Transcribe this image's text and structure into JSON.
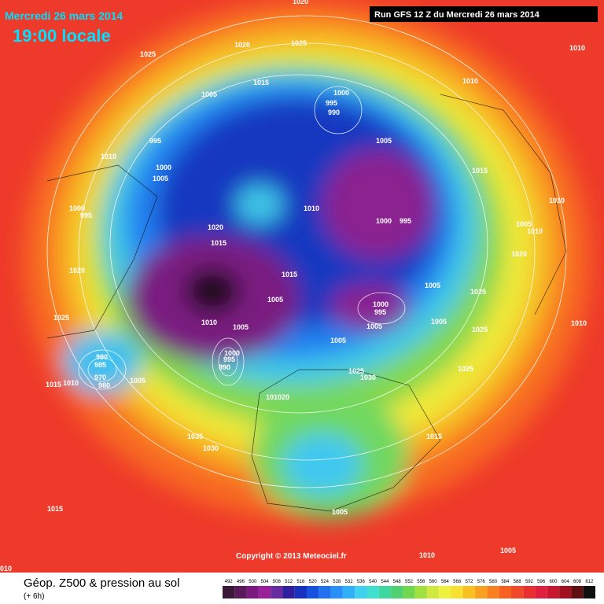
{
  "header": {
    "date": "Mercredi 26 mars 2014",
    "time": "19:00 locale",
    "run": "Run GFS 12 Z du Mercredi 26 mars 2014"
  },
  "copyright": "Copyright © 2013 Meteociel.fr",
  "footer": {
    "title": "Géop. Z500 & pression au sol",
    "subtitle": "(+ 6h)"
  },
  "colorbar": {
    "labels": [
      "492",
      "496",
      "500",
      "504",
      "508",
      "512",
      "516",
      "520",
      "524",
      "528",
      "532",
      "536",
      "540",
      "544",
      "548",
      "552",
      "556",
      "560",
      "564",
      "568",
      "572",
      "576",
      "580",
      "584",
      "588",
      "592",
      "596",
      "600",
      "604",
      "608",
      "612"
    ],
    "colors": [
      "#3a1838",
      "#5a1a5a",
      "#7a1a80",
      "#9a209a",
      "#6a2aa0",
      "#3020a0",
      "#1830c0",
      "#1850e0",
      "#2070f0",
      "#2890f8",
      "#30b0f8",
      "#40d0f0",
      "#40e0d0",
      "#40d8a0",
      "#50d070",
      "#70d850",
      "#a0e040",
      "#d0e840",
      "#f0f040",
      "#f8e030",
      "#f8c020",
      "#f8a020",
      "#f88020",
      "#f86020",
      "#f04828",
      "#e83030",
      "#e02040",
      "#c81830",
      "#a01020",
      "#601010",
      "#101010"
    ]
  },
  "isobars": [
    "1020",
    "1025",
    "1020",
    "1025",
    "1010",
    "1010",
    "1005",
    "1015",
    "1000",
    "995",
    "990",
    "995",
    "1010",
    "1000",
    "1005",
    "1005",
    "1015",
    "1000",
    "995",
    "1010",
    "1020",
    "1015",
    "1000",
    "995",
    "1010",
    "1005",
    "1010",
    "1020",
    "1020",
    "1015",
    "1005",
    "1005",
    "1025",
    "1025",
    "1000",
    "995",
    "1005",
    "1010",
    "1005",
    "1005",
    "1010",
    "1025",
    "1005",
    "1000",
    "995",
    "990",
    "990",
    "985",
    "970",
    "980",
    "1005",
    "1015",
    "1010",
    "1025",
    "1030",
    "1025",
    "101020",
    "1015",
    "1035",
    "1030",
    "1005",
    "1015",
    "1010",
    "1005",
    "010"
  ]
}
